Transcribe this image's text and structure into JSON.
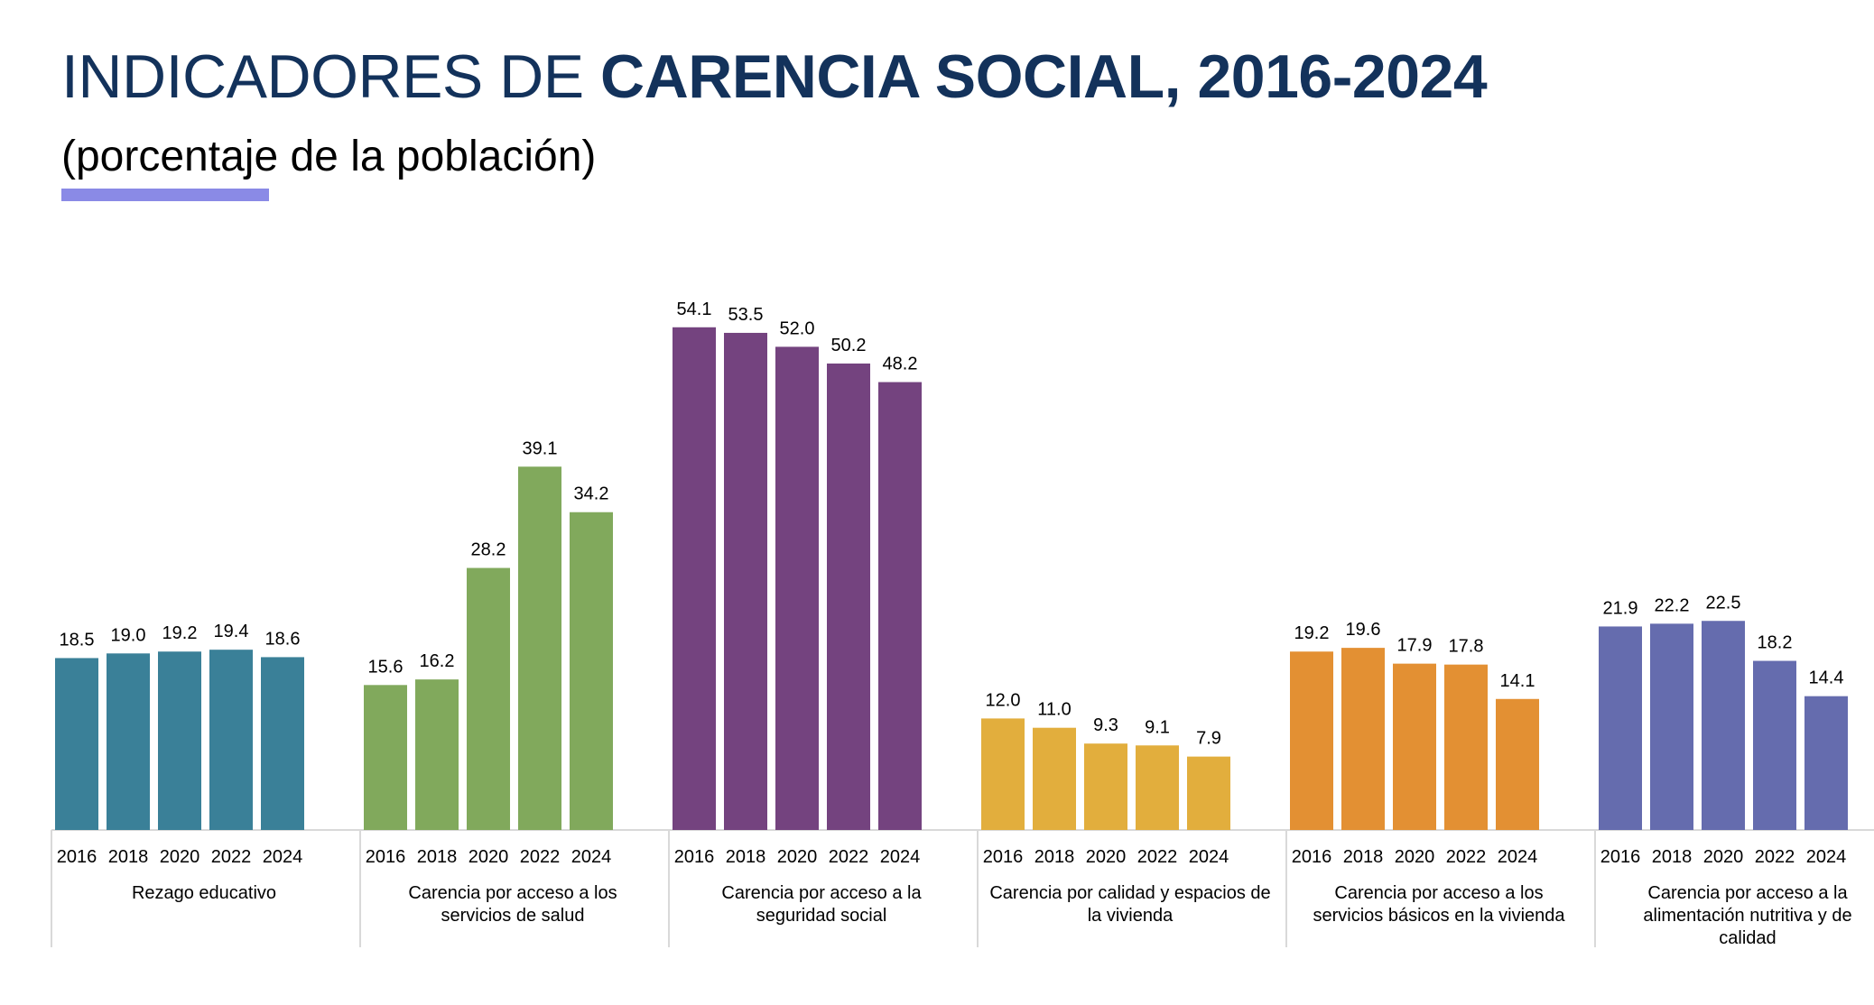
{
  "title": {
    "part1": "INDICADORES DE ",
    "part2": "CARENCIA SOCIAL, 2016-2024"
  },
  "subtitle": "(porcentaje de la población)",
  "colors": {
    "title": "#13325b",
    "accent_bar": "#8a8ae6"
  },
  "chart_data": {
    "type": "bar",
    "title": "INDICADORES DE CARENCIA SOCIAL, 2016-2024",
    "subtitle": "(porcentaje de la población)",
    "years": [
      "2016",
      "2018",
      "2020",
      "2022",
      "2024"
    ],
    "ylim": [
      0,
      56
    ],
    "grid": false,
    "legend": "none",
    "groups": [
      {
        "label_lines": [
          "Rezago educativo"
        ],
        "color": "#3a8098",
        "values": [
          18.5,
          19.0,
          19.2,
          19.4,
          18.6
        ]
      },
      {
        "label_lines": [
          "Carencia por acceso a los",
          "servicios de salud"
        ],
        "color": "#81a95c",
        "values": [
          15.6,
          16.2,
          28.2,
          39.1,
          34.2
        ]
      },
      {
        "label_lines": [
          "Carencia por acceso a la",
          "seguridad social"
        ],
        "color": "#74437f",
        "values": [
          54.1,
          53.5,
          52.0,
          50.2,
          48.2
        ]
      },
      {
        "label_lines": [
          "Carencia por calidad y espacios de",
          "la vivienda"
        ],
        "color": "#e2ae3d",
        "values": [
          12.0,
          11.0,
          9.3,
          9.1,
          7.9
        ]
      },
      {
        "label_lines": [
          "Carencia por acceso a los",
          "servicios básicos en la vivienda"
        ],
        "color": "#e39033",
        "values": [
          19.2,
          19.6,
          17.9,
          17.8,
          14.1
        ]
      },
      {
        "label_lines": [
          "Carencia por acceso a la",
          "alimentación nutritiva y de",
          "calidad"
        ],
        "color": "#656cae",
        "values": [
          21.9,
          22.2,
          22.5,
          18.2,
          14.4
        ]
      }
    ]
  }
}
